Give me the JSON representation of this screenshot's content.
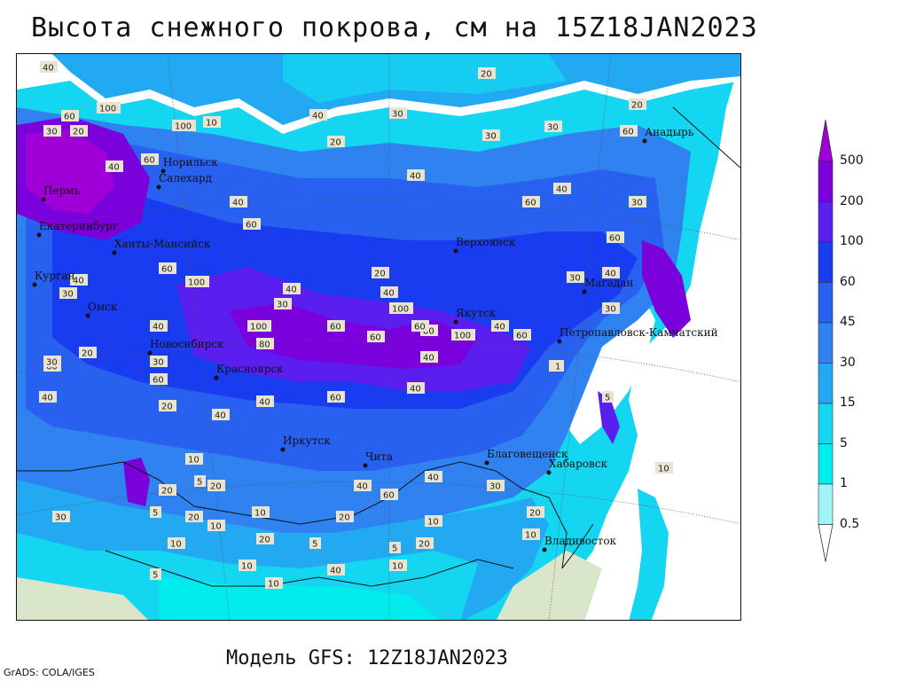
{
  "title": "Высота снежного покрова, см на 15Z18JAN2023",
  "subtitle": "Модель GFS: 12Z18JAN2023",
  "credit": "GrADS: COLA/IGES",
  "legend": {
    "levels": [
      "500",
      "200",
      "100",
      "60",
      "45",
      "30",
      "15",
      "5",
      "1",
      "0.5"
    ],
    "colors": [
      "#a000d8",
      "#7a00dc",
      "#5a1fee",
      "#1a3cf0",
      "#2860f0",
      "#2f82f0",
      "#22a9f2",
      "#14d6f0",
      "#00eced",
      "#a0f4f7",
      "#ffffff"
    ]
  },
  "cities": [
    {
      "name": "Норильск"
    },
    {
      "name": "Салехард"
    },
    {
      "name": "Екатеринбург"
    },
    {
      "name": "Пермь"
    },
    {
      "name": "Ханты-Мансийск"
    },
    {
      "name": "Курган"
    },
    {
      "name": "Омск"
    },
    {
      "name": "Новосибирск"
    },
    {
      "name": "Красноярск"
    },
    {
      "name": "Иркутск"
    },
    {
      "name": "Чита"
    },
    {
      "name": "Верхоянск"
    },
    {
      "name": "Якутск"
    },
    {
      "name": "Магадан"
    },
    {
      "name": "Анадырь"
    },
    {
      "name": "Петропавловск-Камчатский"
    },
    {
      "name": "Благовещенск"
    },
    {
      "name": "Хабаровск"
    },
    {
      "name": "Владивосток"
    }
  ],
  "contour_labels": [
    "40",
    "60",
    "100",
    "10",
    "30",
    "20",
    "40",
    "60",
    "100",
    "40",
    "60",
    "40",
    "30",
    "60",
    "20",
    "60",
    "100",
    "40",
    "30",
    "20",
    "40",
    "60",
    "100",
    "80",
    "60",
    "40",
    "30",
    "20",
    "10",
    "5",
    "10",
    "20",
    "40",
    "60",
    "80",
    "100",
    "60",
    "40",
    "100",
    "40",
    "60",
    "20",
    "30",
    "60",
    "40",
    "30",
    "40",
    "60",
    "30",
    "20",
    "40",
    "10",
    "5",
    "20",
    "10",
    "30",
    "20",
    "10",
    "5",
    "1",
    "5",
    "10",
    "5",
    "30",
    "40",
    "60",
    "40",
    "20",
    "10",
    "20",
    "40",
    "60",
    "40",
    "30",
    "20",
    "60",
    "30",
    "40",
    "20",
    "40",
    "30",
    "10",
    "5",
    "30",
    "10",
    "5",
    "40",
    "20",
    "10"
  ]
}
